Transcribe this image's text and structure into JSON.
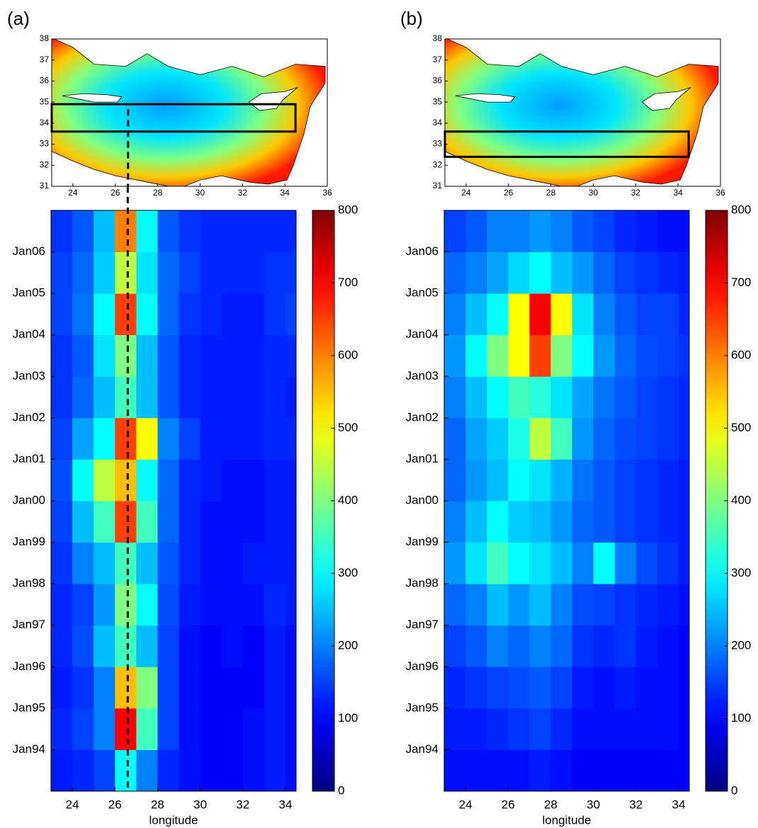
{
  "chart_data": [
    {
      "type": "map",
      "title": "(a)",
      "xlim": [
        23,
        36
      ],
      "ylim": [
        31,
        38
      ],
      "xticks": [
        24,
        26,
        28,
        30,
        32,
        34,
        36
      ],
      "yticks": [
        31,
        32,
        33,
        34,
        35,
        36,
        37,
        38
      ],
      "box": {
        "lon": [
          23,
          34.5
        ],
        "lat": [
          33.6,
          34.9
        ]
      },
      "section_lon": 26.6
    },
    {
      "type": "heatmap",
      "xlabel": "longitude",
      "xlim": [
        23,
        34.5
      ],
      "ylim": [
        1993,
        2007
      ],
      "xticks": [
        24,
        26,
        28,
        30,
        32,
        34
      ],
      "yticks": [
        {
          "value": 1994,
          "label": "Jan94"
        },
        {
          "value": 1995,
          "label": "Jan95"
        },
        {
          "value": 1996,
          "label": "Jan96"
        },
        {
          "value": 1997,
          "label": "Jan97"
        },
        {
          "value": 1998,
          "label": "Jan98"
        },
        {
          "value": 1999,
          "label": "Jan99"
        },
        {
          "value": 2000,
          "label": "Jan00"
        },
        {
          "value": 2001,
          "label": "Jan01"
        },
        {
          "value": 2002,
          "label": "Jan02"
        },
        {
          "value": 2003,
          "label": "Jan03"
        },
        {
          "value": 2004,
          "label": "Jan04"
        },
        {
          "value": 2005,
          "label": "Jan05"
        },
        {
          "value": 2006,
          "label": "Jan06"
        }
      ],
      "x_bins": [
        23,
        24,
        25,
        26,
        27,
        28,
        29,
        30,
        31,
        32,
        33,
        34,
        34.5
      ],
      "y_bins": [
        1993,
        1994,
        1995,
        1996,
        1997,
        1998,
        1999,
        2000,
        2001,
        2002,
        2003,
        2004,
        2005,
        2006,
        2007
      ],
      "values": [
        [
          120,
          130,
          150,
          300,
          200,
          130,
          110,
          100,
          100,
          110,
          120,
          110
        ],
        [
          130,
          150,
          200,
          700,
          350,
          150,
          110,
          100,
          100,
          110,
          120,
          110
        ],
        [
          120,
          140,
          200,
          550,
          400,
          150,
          110,
          100,
          100,
          100,
          120,
          110
        ],
        [
          130,
          160,
          250,
          350,
          250,
          150,
          110,
          100,
          110,
          100,
          120,
          110
        ],
        [
          130,
          150,
          220,
          400,
          300,
          160,
          120,
          110,
          110,
          110,
          130,
          120
        ],
        [
          140,
          200,
          250,
          350,
          250,
          170,
          130,
          110,
          110,
          120,
          120,
          120
        ],
        [
          150,
          250,
          350,
          650,
          350,
          180,
          130,
          110,
          110,
          110,
          120,
          120
        ],
        [
          160,
          300,
          450,
          550,
          300,
          180,
          130,
          120,
          110,
          110,
          120,
          120
        ],
        [
          150,
          230,
          300,
          650,
          500,
          200,
          150,
          120,
          120,
          120,
          130,
          130
        ],
        [
          140,
          180,
          250,
          350,
          250,
          170,
          130,
          120,
          120,
          120,
          130,
          120
        ],
        [
          140,
          170,
          280,
          400,
          250,
          170,
          130,
          120,
          120,
          120,
          130,
          130
        ],
        [
          150,
          190,
          300,
          650,
          300,
          180,
          140,
          130,
          120,
          120,
          140,
          150
        ],
        [
          150,
          180,
          260,
          450,
          280,
          180,
          150,
          130,
          130,
          130,
          140,
          140
        ],
        [
          140,
          170,
          250,
          600,
          300,
          170,
          140,
          130,
          130,
          130,
          130,
          130
        ]
      ],
      "clim": [
        0,
        800
      ],
      "cticks": [
        0,
        100,
        200,
        300,
        400,
        500,
        600,
        700,
        800
      ],
      "section_lon": 26.6
    },
    {
      "type": "map",
      "title": "(b)",
      "xlim": [
        23,
        36
      ],
      "ylim": [
        31,
        38
      ],
      "xticks": [
        24,
        26,
        28,
        30,
        32,
        34,
        36
      ],
      "yticks": [
        31,
        32,
        33,
        34,
        35,
        36,
        37,
        38
      ],
      "box": {
        "lon": [
          23,
          34.5
        ],
        "lat": [
          32.4,
          33.6
        ]
      }
    },
    {
      "type": "heatmap",
      "xlabel": "longitude",
      "xlim": [
        23,
        34.5
      ],
      "ylim": [
        1993,
        2007
      ],
      "xticks": [
        24,
        26,
        28,
        30,
        32,
        34
      ],
      "yticks": [
        {
          "value": 1994,
          "label": "Jan94"
        },
        {
          "value": 1995,
          "label": "Jan95"
        },
        {
          "value": 1996,
          "label": "Jan96"
        },
        {
          "value": 1997,
          "label": "Jan97"
        },
        {
          "value": 1998,
          "label": "Jan98"
        },
        {
          "value": 1999,
          "label": "Jan99"
        },
        {
          "value": 2000,
          "label": "Jan00"
        },
        {
          "value": 2001,
          "label": "Jan01"
        },
        {
          "value": 2002,
          "label": "Jan02"
        },
        {
          "value": 2003,
          "label": "Jan03"
        },
        {
          "value": 2004,
          "label": "Jan04"
        },
        {
          "value": 2005,
          "label": "Jan05"
        },
        {
          "value": 2006,
          "label": "Jan06"
        }
      ],
      "x_bins": [
        23,
        24,
        25,
        26,
        27,
        28,
        29,
        30,
        31,
        32,
        33,
        34,
        34.5
      ],
      "y_bins": [
        1993,
        1994,
        1995,
        1996,
        1997,
        1998,
        1999,
        2000,
        2001,
        2002,
        2003,
        2004,
        2005,
        2006,
        2007
      ],
      "values": [
        [
          110,
          110,
          110,
          110,
          120,
          110,
          100,
          100,
          100,
          100,
          100,
          100
        ],
        [
          120,
          120,
          130,
          140,
          150,
          130,
          110,
          110,
          110,
          110,
          110,
          100
        ],
        [
          130,
          140,
          150,
          160,
          170,
          150,
          120,
          110,
          120,
          110,
          110,
          100
        ],
        [
          150,
          170,
          200,
          180,
          200,
          180,
          140,
          130,
          140,
          120,
          110,
          100
        ],
        [
          180,
          200,
          250,
          220,
          250,
          200,
          160,
          150,
          140,
          130,
          120,
          110
        ],
        [
          220,
          280,
          350,
          300,
          280,
          250,
          200,
          300,
          200,
          160,
          140,
          120
        ],
        [
          200,
          250,
          300,
          260,
          250,
          220,
          180,
          170,
          150,
          140,
          130,
          120
        ],
        [
          180,
          220,
          250,
          300,
          280,
          240,
          190,
          170,
          150,
          140,
          130,
          120
        ],
        [
          180,
          230,
          260,
          320,
          450,
          350,
          220,
          180,
          160,
          150,
          140,
          130
        ],
        [
          200,
          250,
          300,
          350,
          330,
          280,
          230,
          190,
          170,
          150,
          140,
          130
        ],
        [
          220,
          300,
          400,
          500,
          650,
          400,
          300,
          220,
          180,
          160,
          150,
          140
        ],
        [
          200,
          250,
          300,
          500,
          700,
          500,
          280,
          200,
          170,
          150,
          150,
          130
        ],
        [
          180,
          200,
          230,
          270,
          300,
          250,
          220,
          180,
          150,
          140,
          130,
          120
        ],
        [
          150,
          170,
          200,
          200,
          220,
          200,
          170,
          150,
          130,
          120,
          110,
          110
        ]
      ],
      "clim": [
        0,
        800
      ],
      "cticks": [
        0,
        100,
        200,
        300,
        400,
        500,
        600,
        700,
        800
      ]
    }
  ]
}
